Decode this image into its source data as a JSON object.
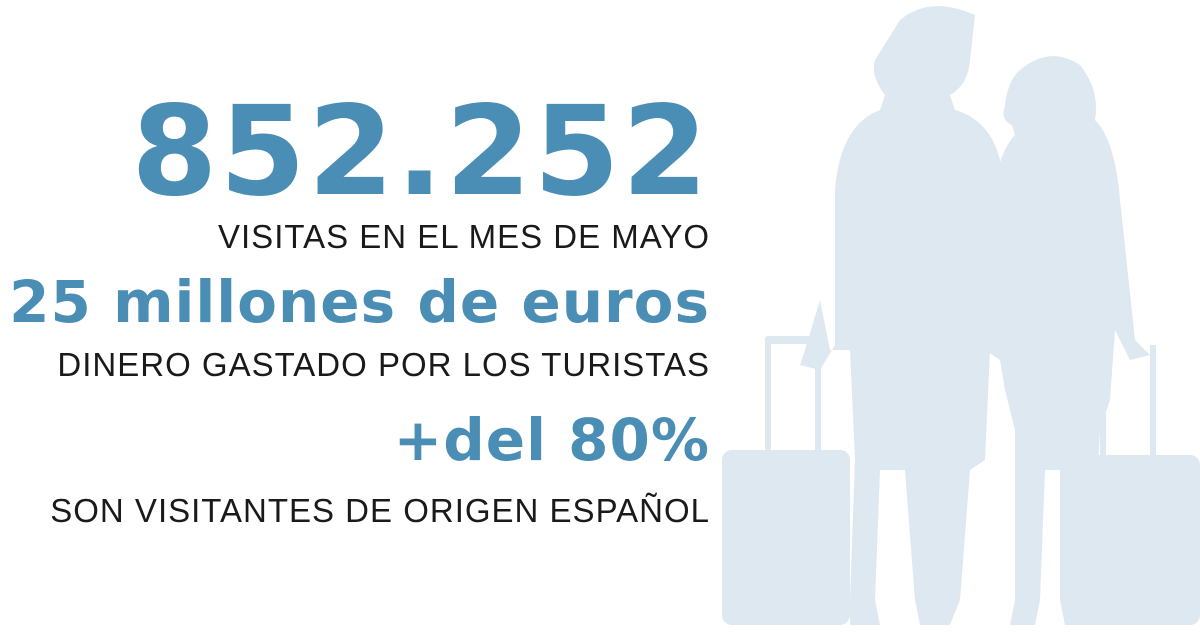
{
  "stats": [
    {
      "value": "852.252",
      "label": "VISITAS EN EL MES DE MAYO"
    },
    {
      "value": "25 millones de euros",
      "label": "DINERO GASTADO POR LOS TURISTAS"
    },
    {
      "value": "+del 80%",
      "label": "SON VISITANTES DE ORIGEN ESPAÑOL"
    }
  ],
  "colors": {
    "accent": "#4a8db5",
    "silhouette": "#dde8f0",
    "text": "#1a1a1a"
  },
  "illustration": "couple-with-suitcases-silhouette"
}
